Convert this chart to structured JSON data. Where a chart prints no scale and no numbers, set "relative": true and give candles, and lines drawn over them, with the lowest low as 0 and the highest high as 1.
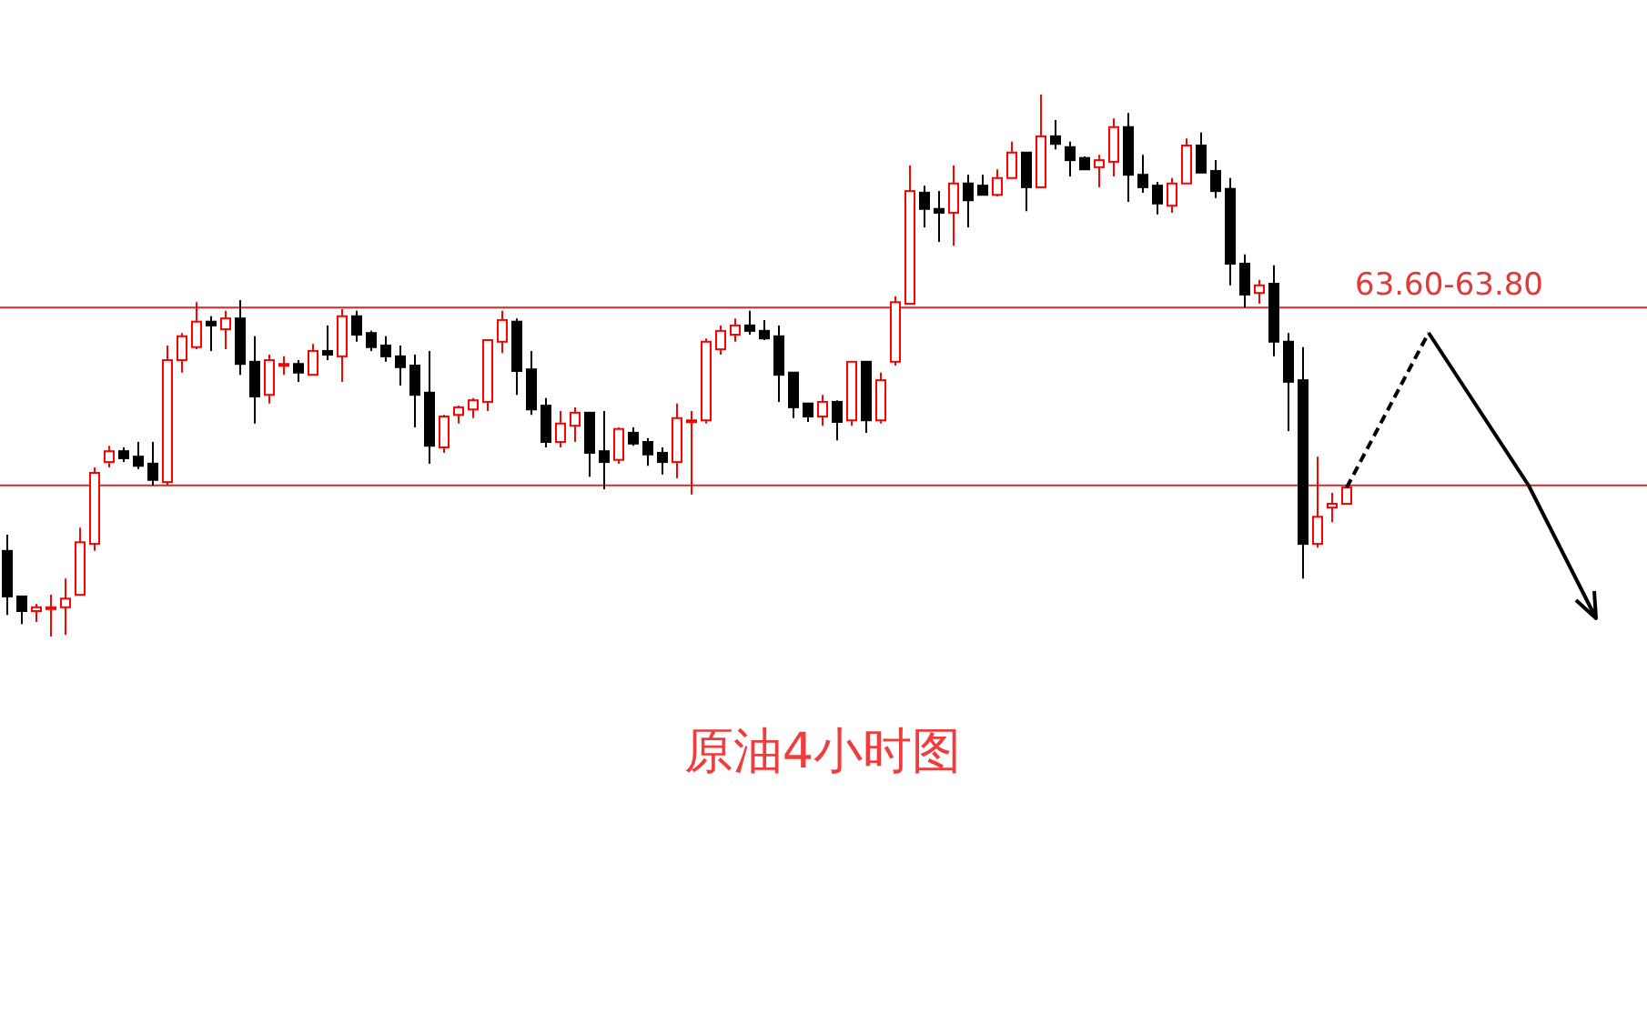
{
  "chart_data": {
    "type": "candlestick",
    "title": "原油4小时图",
    "relative": true,
    "categories": [
      null,
      null,
      null,
      null,
      null,
      null,
      null,
      null,
      null,
      null,
      null,
      null,
      null,
      null,
      null,
      null,
      null,
      null,
      null,
      null,
      null,
      null,
      null,
      null,
      null,
      null,
      null,
      null,
      null,
      null,
      null,
      null,
      null,
      null,
      null,
      null,
      null,
      null,
      null,
      null,
      null,
      null,
      null,
      null,
      null,
      null,
      null,
      null,
      null,
      null,
      null,
      null,
      null,
      null,
      null,
      null,
      null,
      null,
      null,
      null,
      null,
      null,
      null,
      null,
      null,
      null,
      null,
      null,
      null,
      null,
      null,
      null,
      null,
      null,
      null,
      null,
      null,
      null,
      null,
      null,
      null,
      null,
      null,
      null,
      null,
      null,
      null,
      null,
      null,
      null,
      null,
      null,
      null
    ],
    "ohlc": [
      [
        0.158,
        0.188,
        0.04,
        0.074
      ],
      [
        0.074,
        0.074,
        0.023,
        0.047
      ],
      [
        0.047,
        0.06,
        0.027,
        0.054
      ],
      [
        0.054,
        0.077,
        0.0,
        0.054
      ],
      [
        0.054,
        0.107,
        0.003,
        0.07
      ],
      [
        0.077,
        0.201,
        0.077,
        0.174
      ],
      [
        0.171,
        0.312,
        0.158,
        0.302
      ],
      [
        0.322,
        0.352,
        0.312,
        0.342
      ],
      [
        0.342,
        0.349,
        0.322,
        0.329
      ],
      [
        0.332,
        0.359,
        0.309,
        0.315
      ],
      [
        0.319,
        0.359,
        0.279,
        0.289
      ],
      [
        0.285,
        0.537,
        0.279,
        0.51
      ],
      [
        0.51,
        0.56,
        0.487,
        0.554
      ],
      [
        0.534,
        0.617,
        0.53,
        0.581
      ],
      [
        0.581,
        0.591,
        0.527,
        0.574
      ],
      [
        0.567,
        0.601,
        0.53,
        0.587
      ],
      [
        0.587,
        0.621,
        0.483,
        0.503
      ],
      [
        0.507,
        0.554,
        0.393,
        0.443
      ],
      [
        0.446,
        0.52,
        0.43,
        0.51
      ],
      [
        0.5,
        0.517,
        0.483,
        0.503
      ],
      [
        0.503,
        0.51,
        0.47,
        0.487
      ],
      [
        0.483,
        0.54,
        0.483,
        0.527
      ],
      [
        0.527,
        0.574,
        0.51,
        0.52
      ],
      [
        0.517,
        0.604,
        0.47,
        0.591
      ],
      [
        0.591,
        0.601,
        0.544,
        0.557
      ],
      [
        0.56,
        0.564,
        0.527,
        0.534
      ],
      [
        0.537,
        0.554,
        0.507,
        0.517
      ],
      [
        0.517,
        0.537,
        0.463,
        0.497
      ],
      [
        0.5,
        0.52,
        0.386,
        0.446
      ],
      [
        0.45,
        0.527,
        0.319,
        0.352
      ],
      [
        0.349,
        0.409,
        0.339,
        0.406
      ],
      [
        0.409,
        0.426,
        0.393,
        0.423
      ],
      [
        0.419,
        0.44,
        0.403,
        0.436
      ],
      [
        0.433,
        0.547,
        0.416,
        0.547
      ],
      [
        0.544,
        0.601,
        0.523,
        0.584
      ],
      [
        0.581,
        0.587,
        0.446,
        0.49
      ],
      [
        0.493,
        0.527,
        0.409,
        0.419
      ],
      [
        0.426,
        0.44,
        0.349,
        0.359
      ],
      [
        0.359,
        0.416,
        0.349,
        0.393
      ],
      [
        0.389,
        0.423,
        0.359,
        0.413
      ],
      [
        0.413,
        0.413,
        0.295,
        0.339
      ],
      [
        0.342,
        0.416,
        0.272,
        0.322
      ],
      [
        0.326,
        0.386,
        0.319,
        0.383
      ],
      [
        0.376,
        0.386,
        0.352,
        0.356
      ],
      [
        0.359,
        0.366,
        0.315,
        0.336
      ],
      [
        0.339,
        0.349,
        0.299,
        0.322
      ],
      [
        0.322,
        0.43,
        0.292,
        0.403
      ],
      [
        0.399,
        0.416,
        0.262,
        0.399
      ],
      [
        0.399,
        0.55,
        0.393,
        0.544
      ],
      [
        0.53,
        0.574,
        0.52,
        0.564
      ],
      [
        0.557,
        0.587,
        0.544,
        0.574
      ],
      [
        0.574,
        0.601,
        0.557,
        0.564
      ],
      [
        0.564,
        0.584,
        0.547,
        0.55
      ],
      [
        0.554,
        0.574,
        0.433,
        0.483
      ],
      [
        0.487,
        0.487,
        0.403,
        0.423
      ],
      [
        0.43,
        0.43,
        0.396,
        0.406
      ],
      [
        0.406,
        0.446,
        0.389,
        0.433
      ],
      [
        0.433,
        0.436,
        0.362,
        0.396
      ],
      [
        0.399,
        0.507,
        0.389,
        0.507
      ],
      [
        0.507,
        0.507,
        0.376,
        0.399
      ],
      [
        0.399,
        0.487,
        0.393,
        0.473
      ],
      [
        0.507,
        0.628,
        0.5,
        0.617
      ],
      [
        0.614,
        0.869,
        0.614,
        0.822
      ],
      [
        0.819,
        0.832,
        0.755,
        0.789
      ],
      [
        0.789,
        0.822,
        0.728,
        0.782
      ],
      [
        0.782,
        0.869,
        0.721,
        0.836
      ],
      [
        0.836,
        0.852,
        0.755,
        0.805
      ],
      [
        0.832,
        0.852,
        0.815,
        0.815
      ],
      [
        0.815,
        0.862,
        0.812,
        0.846
      ],
      [
        0.846,
        0.913,
        0.846,
        0.893
      ],
      [
        0.893,
        0.893,
        0.785,
        0.829
      ],
      [
        0.829,
        1.0,
        0.829,
        0.923
      ],
      [
        0.923,
        0.953,
        0.899,
        0.909
      ],
      [
        0.903,
        0.913,
        0.849,
        0.879
      ],
      [
        0.883,
        0.886,
        0.862,
        0.862
      ],
      [
        0.866,
        0.889,
        0.829,
        0.879
      ],
      [
        0.876,
        0.956,
        0.849,
        0.94
      ],
      [
        0.94,
        0.966,
        0.802,
        0.852
      ],
      [
        0.852,
        0.889,
        0.819,
        0.829
      ],
      [
        0.832,
        0.839,
        0.779,
        0.799
      ],
      [
        0.795,
        0.846,
        0.782,
        0.836
      ],
      [
        0.836,
        0.919,
        0.836,
        0.906
      ],
      [
        0.906,
        0.93,
        0.856,
        0.856
      ],
      [
        0.859,
        0.879,
        0.809,
        0.822
      ],
      [
        0.826,
        0.846,
        0.648,
        0.688
      ],
      [
        0.688,
        0.705,
        0.607,
        0.631
      ],
      [
        0.634,
        0.658,
        0.614,
        0.648
      ],
      [
        0.651,
        0.685,
        0.517,
        0.544
      ],
      [
        0.544,
        0.56,
        0.379,
        0.47
      ],
      [
        0.473,
        0.534,
        0.107,
        0.171
      ],
      [
        0.171,
        0.332,
        0.164,
        0.221
      ],
      [
        0.238,
        0.265,
        0.211,
        0.245
      ],
      [
        0.245,
        0.275,
        0.245,
        0.275
      ]
    ],
    "annotations": [
      "63.60-63.80"
    ],
    "ref_lines": [
      {
        "axis": "y",
        "value": 0.607,
        "color": "#d42a2a"
      },
      {
        "axis": "y",
        "value": 0.279,
        "color": "#d42a2a"
      }
    ]
  }
}
